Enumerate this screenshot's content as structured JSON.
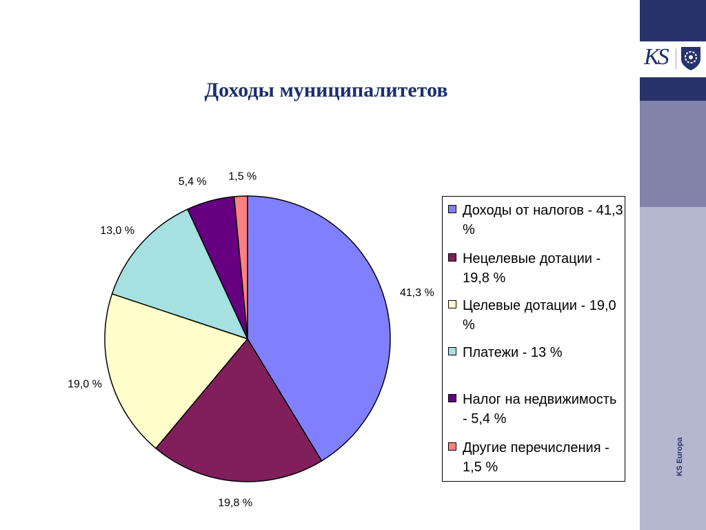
{
  "title": "Доходы муниципалитетов",
  "chart_data": {
    "type": "pie",
    "title": "Доходы муниципалитетов",
    "slices": [
      {
        "label": "41,3 %",
        "value": 41.3,
        "color": "#8080ff",
        "legend": "Доходы от налогов - 41,3 %"
      },
      {
        "label": "19,8 %",
        "value": 19.8,
        "color": "#801f5c",
        "legend": "Нецелевые дотации - 19,8 %"
      },
      {
        "label": "19,0 %",
        "value": 19.0,
        "color": "#ffffcc",
        "legend": "Целевые дотации - 19,0 %"
      },
      {
        "label": "13,0 %",
        "value": 13.0,
        "color": "#a6e0e0",
        "legend": "Платежи - 13 %"
      },
      {
        "label": "5,4 %",
        "value": 5.4,
        "color": "#660080",
        "legend": "Налог на недвижимость - 5,4 %"
      },
      {
        "label": "1,5 %",
        "value": 1.5,
        "color": "#ff8080",
        "legend": "Другие перечисления - 1,5 %"
      }
    ],
    "legend_position": "right"
  },
  "sidebar": {
    "logo_text": "KS",
    "footer_text": "KS Europa",
    "colors": {
      "navy": "#27336a",
      "mid": "#8083aa",
      "light": "#b5b7cf"
    }
  }
}
